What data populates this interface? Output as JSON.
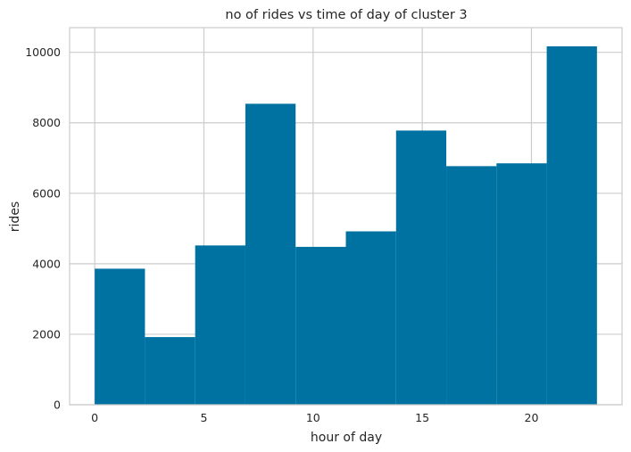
{
  "chart_data": {
    "type": "bar",
    "subtype": "histogram",
    "title": "no of rides vs time of day of cluster 3",
    "xlabel": "hour of day",
    "ylabel": "rides",
    "bins": [
      {
        "start": 0.0,
        "end": 2.3,
        "value": 3860
      },
      {
        "start": 2.3,
        "end": 4.6,
        "value": 1920
      },
      {
        "start": 4.6,
        "end": 6.9,
        "value": 4520
      },
      {
        "start": 6.9,
        "end": 9.2,
        "value": 8540
      },
      {
        "start": 9.2,
        "end": 11.5,
        "value": 4480
      },
      {
        "start": 11.5,
        "end": 13.8,
        "value": 4920
      },
      {
        "start": 13.8,
        "end": 16.1,
        "value": 7780
      },
      {
        "start": 16.1,
        "end": 18.4,
        "value": 6770
      },
      {
        "start": 18.4,
        "end": 20.7,
        "value": 6850
      },
      {
        "start": 20.7,
        "end": 23.0,
        "value": 10170
      }
    ],
    "xlim": [
      -1.15,
      24.15
    ],
    "ylim": [
      0,
      10700
    ],
    "xticks": [
      0,
      5,
      10,
      15,
      20
    ],
    "yticks": [
      0,
      2000,
      4000,
      6000,
      8000,
      10000
    ],
    "grid": true,
    "colors": {
      "bar": "#0072a2",
      "grid": "#cccccc",
      "frame": "#cccccc",
      "background": "#ffffff"
    }
  }
}
